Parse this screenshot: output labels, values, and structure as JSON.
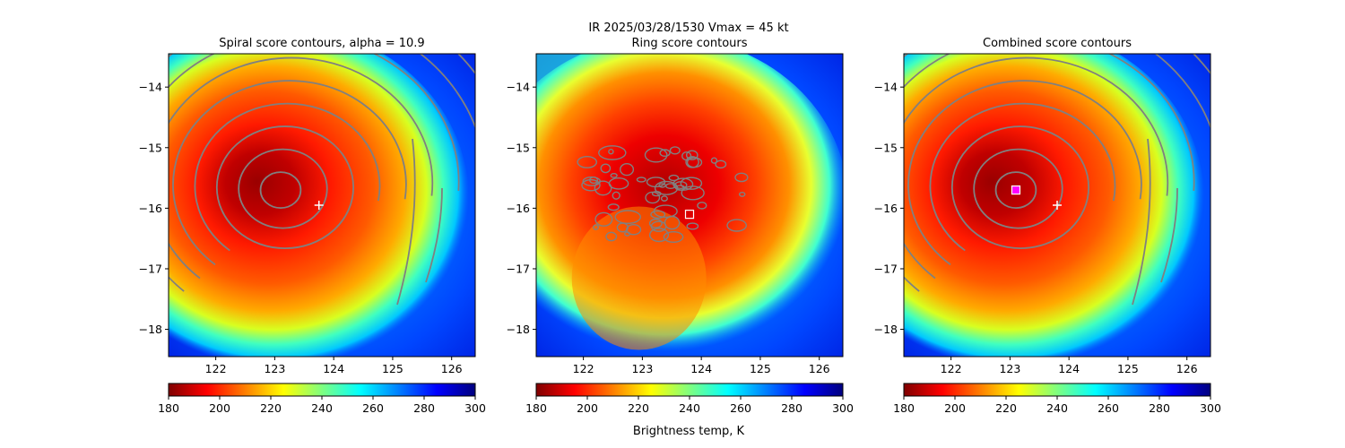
{
  "suptitle": "IR  2025/03/28/1530    Vmax = 45 kt",
  "colorbar_label": "Brightness temp, K",
  "colormap": {
    "name": "jet_r",
    "stops": [
      "#7f0000",
      "#ff0000",
      "#ff7f00",
      "#ffff00",
      "#7fff7f",
      "#00ffff",
      "#007fff",
      "#0000ff",
      "#00007f"
    ]
  },
  "contour_color": "#808080",
  "chart_data": [
    {
      "type": "heatmap",
      "title": "Spiral score contours, alpha = 10.9",
      "xlim": [
        121.2,
        126.4
      ],
      "ylim": [
        -18.45,
        -13.45
      ],
      "xticks": [
        "122",
        "123",
        "124",
        "125",
        "126"
      ],
      "xtick_values": [
        122,
        123,
        124,
        125,
        126
      ],
      "yticks": [
        "−14",
        "−15",
        "−16",
        "−17",
        "−18"
      ],
      "ytick_values": [
        -14,
        -15,
        -16,
        -17,
        -18
      ],
      "colorbar": {
        "min": 180,
        "max": 300,
        "ticks": [
          "180",
          "200",
          "220",
          "240",
          "260",
          "280",
          "300"
        ],
        "tick_values": [
          180,
          200,
          220,
          240,
          260,
          280,
          300
        ]
      },
      "markers": [
        {
          "shape": "plus",
          "lon": 123.75,
          "lat": -15.95,
          "color": "#ffffff"
        }
      ],
      "contour_center": {
        "lon": 123.1,
        "lat": -15.7
      },
      "contour_levels": 10
    },
    {
      "type": "heatmap",
      "title": "Ring score contours",
      "xlim": [
        121.2,
        126.4
      ],
      "ylim": [
        -18.45,
        -13.45
      ],
      "xticks": [
        "122",
        "123",
        "124",
        "125",
        "126"
      ],
      "xtick_values": [
        122,
        123,
        124,
        125,
        126
      ],
      "yticks": [
        "−14",
        "−15",
        "−16",
        "−17",
        "−18"
      ],
      "ytick_values": [
        -14,
        -15,
        -16,
        -17,
        -18
      ],
      "colorbar": {
        "min": 180,
        "max": 300,
        "ticks": [
          "180",
          "200",
          "220",
          "240",
          "260",
          "280",
          "300"
        ],
        "tick_values": [
          180,
          200,
          220,
          240,
          260,
          280,
          300
        ]
      },
      "markers": [
        {
          "shape": "square",
          "lon": 123.8,
          "lat": -16.1,
          "color": "#ffffff"
        }
      ],
      "contour_center": {
        "lon": 123.4,
        "lat": -15.75
      }
    },
    {
      "type": "heatmap",
      "title": "Combined score contours",
      "xlim": [
        121.2,
        126.4
      ],
      "ylim": [
        -18.45,
        -13.45
      ],
      "xticks": [
        "122",
        "123",
        "124",
        "125",
        "126"
      ],
      "xtick_values": [
        122,
        123,
        124,
        125,
        126
      ],
      "yticks": [
        "−14",
        "−15",
        "−16",
        "−17",
        "−18"
      ],
      "ytick_values": [
        -14,
        -15,
        -16,
        -17,
        -18
      ],
      "colorbar": {
        "min": 180,
        "max": 300,
        "ticks": [
          "180",
          "200",
          "220",
          "240",
          "260",
          "280",
          "300"
        ],
        "tick_values": [
          180,
          200,
          220,
          240,
          260,
          280,
          300
        ]
      },
      "markers": [
        {
          "shape": "plus",
          "lon": 123.8,
          "lat": -15.95,
          "color": "#ffffff"
        },
        {
          "shape": "square",
          "lon": 123.1,
          "lat": -15.7,
          "color": "#ff00ff"
        }
      ],
      "contour_center": {
        "lon": 123.1,
        "lat": -15.7
      },
      "contour_levels": 11
    }
  ]
}
